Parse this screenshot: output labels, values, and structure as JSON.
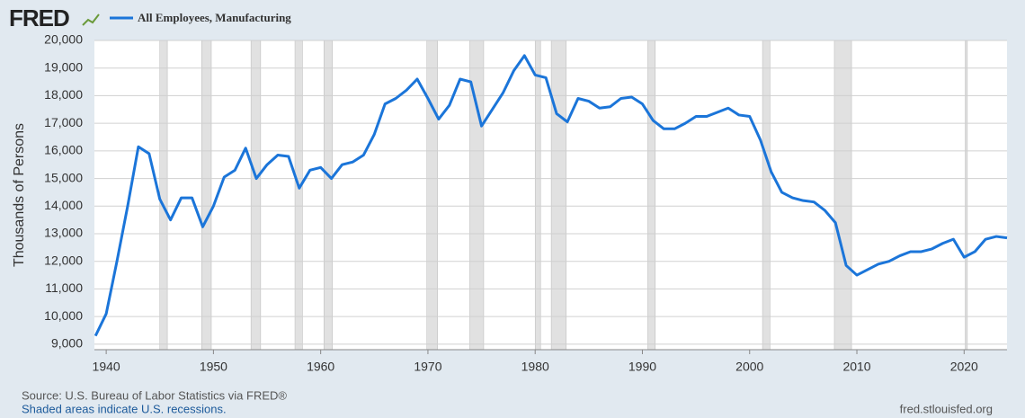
{
  "chart_data": {
    "type": "line",
    "logo": "FRED",
    "y_label": "Thousands of Persons",
    "x": [
      1939,
      1940,
      1941,
      1942,
      1943,
      1944,
      1945,
      1946,
      1947,
      1948,
      1949,
      1950,
      1951,
      1952,
      1953,
      1954,
      1955,
      1956,
      1957,
      1958,
      1959,
      1960,
      1961,
      1962,
      1963,
      1964,
      1965,
      1966,
      1967,
      1968,
      1969,
      1970,
      1971,
      1972,
      1973,
      1974,
      1975,
      1976,
      1977,
      1978,
      1979,
      1980,
      1981,
      1982,
      1983,
      1984,
      1985,
      1986,
      1987,
      1988,
      1989,
      1990,
      1991,
      1992,
      1993,
      1994,
      1995,
      1996,
      1997,
      1998,
      1999,
      2000,
      2001,
      2002,
      2003,
      2004,
      2005,
      2006,
      2007,
      2008,
      2009,
      2010,
      2011,
      2012,
      2013,
      2014,
      2015,
      2016,
      2017,
      2018,
      2019,
      2020,
      2021,
      2022,
      2023,
      2024
    ],
    "series": [
      {
        "name": "All Employees, Manufacturing",
        "color": "#1b75d9",
        "values": [
          9300,
          10100,
          12000,
          14000,
          16150,
          15900,
          14250,
          13500,
          14300,
          14300,
          13250,
          14000,
          15050,
          15300,
          16100,
          15000,
          15500,
          15850,
          15800,
          14650,
          15300,
          15400,
          15000,
          15500,
          15600,
          15850,
          16600,
          17700,
          17900,
          18200,
          18600,
          17900,
          17150,
          17650,
          18600,
          18500,
          16900,
          17500,
          18100,
          18900,
          19450,
          18750,
          18650,
          17350,
          17050,
          17900,
          17800,
          17550,
          17600,
          17900,
          17950,
          17700,
          17100,
          16800,
          16800,
          17000,
          17250,
          17250,
          17400,
          17550,
          17300,
          17250,
          16400,
          15250,
          14500,
          14300,
          14200,
          14150,
          13850,
          13400,
          11850,
          11500,
          11700,
          11900,
          12000,
          12200,
          12350,
          12350,
          12450,
          12650,
          12800,
          12150,
          12350,
          12800,
          12900,
          12850
        ]
      }
    ],
    "recessions": [
      [
        1945.0,
        1945.7
      ],
      [
        1948.9,
        1949.8
      ],
      [
        1953.5,
        1954.4
      ],
      [
        1957.6,
        1958.3
      ],
      [
        1960.3,
        1961.1
      ],
      [
        1969.9,
        1970.9
      ],
      [
        1973.9,
        1975.2
      ],
      [
        1980.0,
        1980.5
      ],
      [
        1981.5,
        1982.9
      ],
      [
        1990.5,
        1991.2
      ],
      [
        2001.2,
        2001.9
      ],
      [
        2007.9,
        2009.5
      ],
      [
        2020.1,
        2020.3
      ]
    ],
    "recession_color": "#e1e1e1",
    "xlim": [
      1938.9,
      2024
    ],
    "ylim": [
      8800,
      20000
    ],
    "xticks": [
      1940,
      1950,
      1960,
      1970,
      1980,
      1990,
      2000,
      2010,
      2020
    ],
    "yticks": [
      {
        "value": 9000,
        "label": "9,000"
      },
      {
        "value": 10000,
        "label": "10,000"
      },
      {
        "value": 11000,
        "label": "11,000"
      },
      {
        "value": 12000,
        "label": "12,000"
      },
      {
        "value": 13000,
        "label": "13,000"
      },
      {
        "value": 14000,
        "label": "14,000"
      },
      {
        "value": 15000,
        "label": "15,000"
      },
      {
        "value": 16000,
        "label": "16,000"
      },
      {
        "value": 17000,
        "label": "17,000"
      },
      {
        "value": 18000,
        "label": "18,000"
      },
      {
        "value": 19000,
        "label": "19,000"
      },
      {
        "value": 20000,
        "label": "20,000"
      }
    ],
    "grid": true,
    "source": "Source: U.S. Bureau of Labor Statistics via FRED®",
    "note": "Shaded areas indicate U.S. recessions.",
    "site": "fred.stlouisfed.org"
  }
}
